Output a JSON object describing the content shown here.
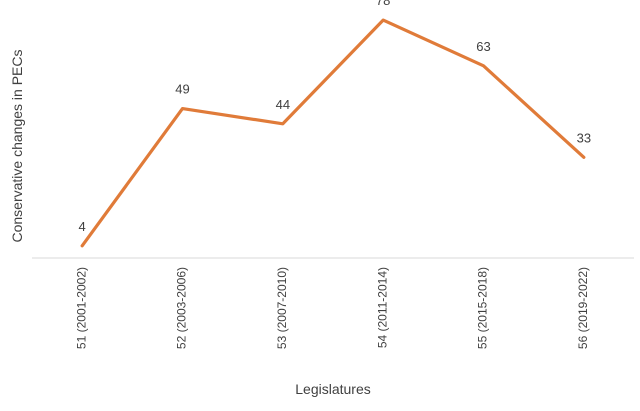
{
  "chart_data": {
    "type": "line",
    "title": "",
    "xlabel": "Legislatures",
    "ylabel": "Conservative changes in PECs",
    "categories": [
      "51 (2001-2002)",
      "52 (2003-2006)",
      "53 (2007-2010)",
      "54 (2011-2014)",
      "55 (2015-2018)",
      "56 (2019-2022)"
    ],
    "series": [
      {
        "values": [
          4,
          49,
          44,
          78,
          63,
          33
        ]
      }
    ],
    "data_labels": [
      "4",
      "49",
      "44",
      "78",
      "63",
      "33"
    ],
    "ylim": [
      0,
      80
    ],
    "grid": false,
    "legend": "none",
    "colors": {
      "line": "#E07B39",
      "axis": "#D9D9D9",
      "text": "#404040"
    }
  }
}
